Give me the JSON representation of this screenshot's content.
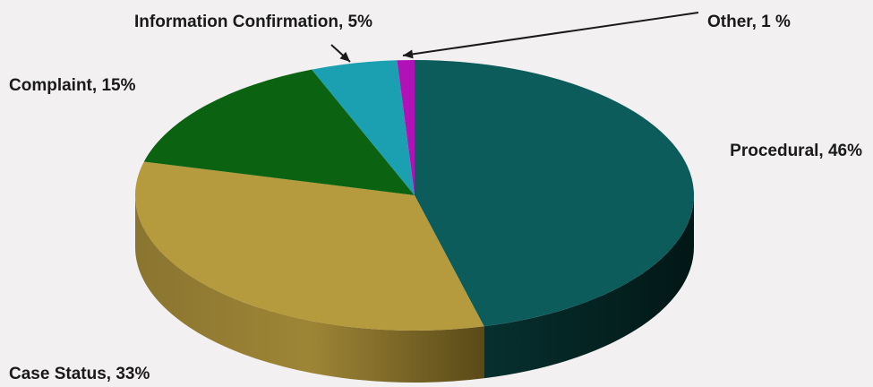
{
  "chart_data": {
    "type": "pie",
    "title": "",
    "style": "3d",
    "slices": [
      {
        "name": "Procedural",
        "value": 46,
        "label": "Procedural, 46%",
        "color": "#0b5c5a"
      },
      {
        "name": "Case Status",
        "value": 33,
        "label": "Case Status, 33%",
        "color": "#b59a3e"
      },
      {
        "name": "Complaint",
        "value": 15,
        "label": "Complaint, 15%",
        "color": "#0b6311"
      },
      {
        "name": "Information Confirmation",
        "value": 5,
        "label": "Information Confirmation, 5%",
        "color": "#1aa0b0"
      },
      {
        "name": "Other",
        "value": 1,
        "label": "Other, 1 %",
        "color": "#b012b8"
      }
    ]
  }
}
